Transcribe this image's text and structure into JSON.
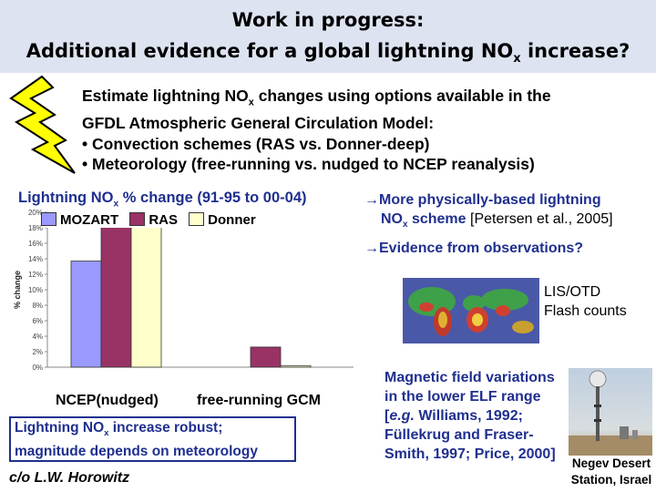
{
  "header": {
    "line1": "Work in progress:",
    "line2_prefix": "Additional evidence for a global lightning NO",
    "line2_sub": "x",
    "line2_suffix": " increase?"
  },
  "intro": {
    "line1_prefix": "Estimate lightning NO",
    "line1_sub": "x",
    "line1_suffix": " changes using options available in the",
    "line2": "GFDL Atmospheric General Circulation Model:",
    "bullet1": "• Convection schemes (RAS vs. Donner-deep)",
    "bullet2": "• Meteorology (free-running vs. nudged to NCEP reanalysis)"
  },
  "chart_data": {
    "type": "bar",
    "title_prefix": "Lightning NO",
    "title_sub": "x",
    "title_suffix": " % change (91-95 to 00-04)",
    "ylabel": "% change",
    "ylim": [
      0,
      20
    ],
    "yticks": [
      "0%",
      "2%",
      "4%",
      "6%",
      "8%",
      "10%",
      "12%",
      "14%",
      "16%",
      "18%",
      "20%"
    ],
    "categories": [
      "NCEP(nudged)",
      "free-running GCM"
    ],
    "series": [
      {
        "name": "MOZART",
        "color": "#9999ff",
        "values": [
          13.7,
          null
        ]
      },
      {
        "name": "RAS",
        "color": "#993366",
        "values": [
          18.6,
          2.6
        ]
      },
      {
        "name": "Donner",
        "color": "#ffffcc",
        "values": [
          18.4,
          0.2
        ]
      }
    ],
    "grid": false
  },
  "note": {
    "line1_prefix": "Lightning NO",
    "line1_sub": "x",
    "line1_suffix": " increase robust;",
    "line2": "magnitude depends on meteorology"
  },
  "credit": "c/o L.W. Horowitz",
  "right": {
    "arrow": "→",
    "item1_line1": "More physically-based lightning",
    "item1_line2_prefix": "NO",
    "item1_line2_sub": "x",
    "item1_line2_suffix": " scheme",
    "item1_ref": " [Petersen et al., 2005]",
    "item2": "Evidence from observations?",
    "map_label_line1": "LIS/OTD",
    "map_label_line2": "Flash counts",
    "mag_line1": "Magnetic field variations",
    "mag_line2": "in the lower ELF range",
    "mag_line3_prefix": "[",
    "mag_line3_eg": "e.g.",
    "mag_line3_suffix": " Williams, 1992;",
    "mag_line4": "Füllekrug and Fraser-",
    "mag_line5": "Smith, 1997; Price, 2000]",
    "photo_caption_line1": "Negev Desert",
    "photo_caption_line2": "Station, Israel"
  },
  "icons": [
    "lightning-bolt-icon",
    "world-map-image",
    "station-photo"
  ]
}
